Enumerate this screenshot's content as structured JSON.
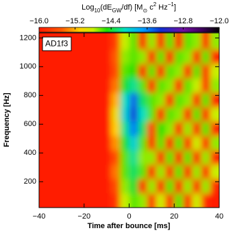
{
  "chart_data": {
    "type": "heatmap",
    "colorbar_label": [
      "Log",
      "10",
      "(dE",
      "GW",
      "/df)  [M",
      "⊙",
      " c",
      "2",
      " Hz",
      "−1",
      "]"
    ],
    "annotation": "AD1f3",
    "x_label": "Time after bounce [ms]",
    "y_label": "Frequency [Hz]",
    "xlim": [
      -40,
      40
    ],
    "ylim": [
      20,
      1235
    ],
    "xticks": [
      {
        "value": -40,
        "label": "−40"
      },
      {
        "value": -20,
        "label": "−20"
      },
      0,
      20,
      40
    ],
    "yticks": [
      200,
      400,
      600,
      800,
      1000,
      1200
    ],
    "clim": [
      -16,
      -12
    ],
    "cticks": [
      {
        "value": -16,
        "label": "−16.0"
      },
      {
        "value": -15.2,
        "label": "−15.2"
      },
      {
        "value": -14.4,
        "label": "−14.4"
      },
      {
        "value": -13.6,
        "label": "−13.6"
      },
      {
        "value": -12.8,
        "label": "−12.8"
      },
      {
        "value": -12,
        "label": "−12.0"
      }
    ],
    "colormap": [
      {
        "value": -16,
        "color": "#ff1a00"
      },
      {
        "value": -15.5,
        "color": "#ff5a00"
      },
      {
        "value": -15.1,
        "color": "#ffd000"
      },
      {
        "value": -14.8,
        "color": "#c8f000"
      },
      {
        "value": -14.5,
        "color": "#20e000"
      },
      {
        "value": -14.1,
        "color": "#00e0c0"
      },
      {
        "value": -13.7,
        "color": "#00a0ff"
      },
      {
        "value": -13.3,
        "color": "#1030d0"
      },
      {
        "value": -12.8,
        "color": "#7010a0"
      },
      {
        "value": -12.4,
        "color": "#400060"
      },
      {
        "value": -12,
        "color": "#000000"
      }
    ],
    "x": [
      -38,
      -34,
      -30,
      -26,
      -22,
      -18,
      -14,
      -10,
      -6,
      -2,
      2,
      6,
      10,
      14,
      18,
      22,
      26,
      30,
      34,
      38
    ],
    "y": [
      70,
      170,
      270,
      370,
      470,
      570,
      670,
      770,
      870,
      970,
      1070,
      1170
    ],
    "z": [
      [
        -16,
        -16,
        -16,
        -16,
        -16,
        -16,
        -16,
        -16,
        -15.8,
        -14.8,
        -14.6,
        -14.7,
        -15.9,
        -14.8,
        -15.9,
        -14.6,
        -15.9,
        -14.8,
        -15.9,
        -16
      ],
      [
        -16,
        -16,
        -16,
        -16,
        -16,
        -16,
        -16,
        -16,
        -15.6,
        -14.7,
        -14.4,
        -15.9,
        -14.7,
        -15.9,
        -14.6,
        -15.9,
        -14.7,
        -15.9,
        -14.7,
        -15.9
      ],
      [
        -16,
        -16,
        -16,
        -16,
        -16,
        -16,
        -16,
        -16,
        -15.4,
        -14.6,
        -14.3,
        -14.6,
        -15.9,
        -14.7,
        -15.8,
        -14.6,
        -15.9,
        -14.7,
        -15.9,
        -14.8
      ],
      [
        -16,
        -16,
        -16,
        -16,
        -16,
        -16,
        -16,
        -16,
        -15.6,
        -14.6,
        -14.2,
        -14.7,
        -14.7,
        -15.9,
        -14.6,
        -15.9,
        -14.6,
        -15.9,
        -14.7,
        -15.9
      ],
      [
        -16,
        -16,
        -16,
        -16,
        -16,
        -16,
        -16,
        -16,
        -15.3,
        -14.4,
        -14.0,
        -14.6,
        -15.9,
        -14.6,
        -15.9,
        -14.6,
        -15.9,
        -14.8,
        -15.9,
        -14.7
      ],
      [
        -16,
        -16,
        -16,
        -16,
        -16,
        -16,
        -16,
        -16,
        -15.1,
        -14.2,
        -13.6,
        -14.3,
        -15.8,
        -14.5,
        -14.7,
        -15.9,
        -14.7,
        -15.9,
        -14.6,
        -15.9
      ],
      [
        -16,
        -16,
        -16,
        -16,
        -16,
        -16,
        -16,
        -16,
        -15.0,
        -14.0,
        -13.4,
        -14.1,
        -14.6,
        -15.9,
        -14.6,
        -14.7,
        -15.9,
        -14.6,
        -15.9,
        -14.8
      ],
      [
        -16,
        -16,
        -16,
        -16,
        -16,
        -16,
        -16,
        -16,
        -15.2,
        -14.1,
        -13.5,
        -14.3,
        -14.6,
        -14.7,
        -15.9,
        -14.6,
        -14.7,
        -15.9,
        -14.6,
        -15.9
      ],
      [
        -16,
        -16,
        -16,
        -16,
        -16,
        -16,
        -16,
        -16,
        -15.4,
        -14.4,
        -14.2,
        -14.6,
        -15.9,
        -14.6,
        -14.7,
        -15.9,
        -14.6,
        -14.8,
        -15.9,
        -14.7
      ],
      [
        -16,
        -16,
        -16,
        -16,
        -16,
        -16,
        -16,
        -16,
        -15.6,
        -14.6,
        -14.5,
        -15.9,
        -14.6,
        -15.9,
        -14.6,
        -14.7,
        -15.9,
        -14.6,
        -15.9,
        -14.8
      ],
      [
        -16,
        -16,
        -16,
        -16,
        -16,
        -16,
        -16,
        -16,
        -15.5,
        -14.7,
        -14.6,
        -14.7,
        -15.9,
        -14.6,
        -15.9,
        -14.6,
        -14.7,
        -15.9,
        -14.6,
        -15.9
      ],
      [
        -16,
        -16,
        -16,
        -16,
        -16,
        -16,
        -16,
        -16,
        -15.7,
        -14.8,
        -14.6,
        -15.9,
        -14.7,
        -15.9,
        -14.6,
        -15.9,
        -14.6,
        -14.7,
        -15.9,
        -14.7
      ]
    ]
  }
}
